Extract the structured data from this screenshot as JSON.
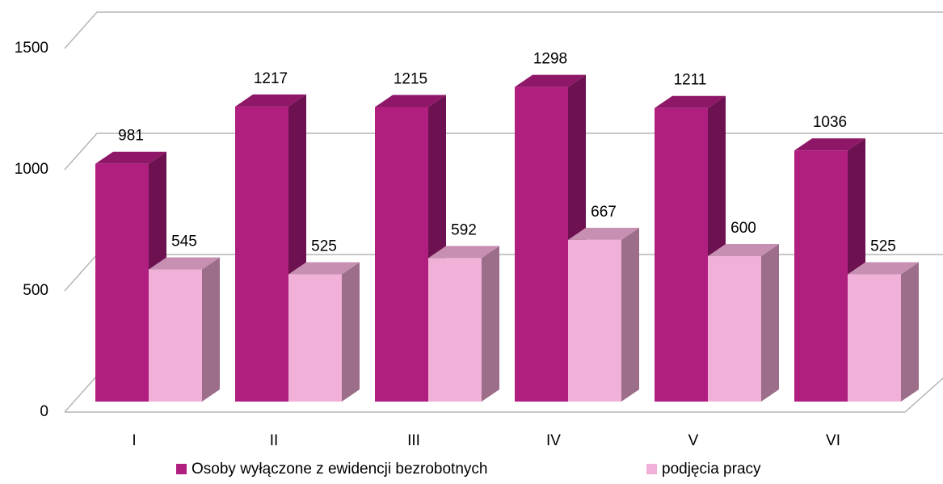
{
  "chart_data": {
    "type": "bar3d",
    "categories": [
      "I",
      "II",
      "III",
      "IV",
      "V",
      "VI"
    ],
    "series": [
      {
        "name": "Osoby wyłączone z ewidencji bezrobotnych",
        "color": "#b01f80",
        "side": "#6e1150",
        "top": "#8e1867",
        "values": [
          981,
          1217,
          1215,
          1298,
          1211,
          1036
        ]
      },
      {
        "name": "podjęcia pracy",
        "color": "#f0b0d8",
        "side": "#9c6e8a",
        "top": "#c790b2",
        "values": [
          545,
          525,
          592,
          667,
          600,
          525
        ]
      }
    ],
    "ylim": [
      0,
      1500
    ],
    "yticks": [
      0,
      500,
      1000,
      1500
    ],
    "grid": true,
    "legend": "bottom"
  }
}
